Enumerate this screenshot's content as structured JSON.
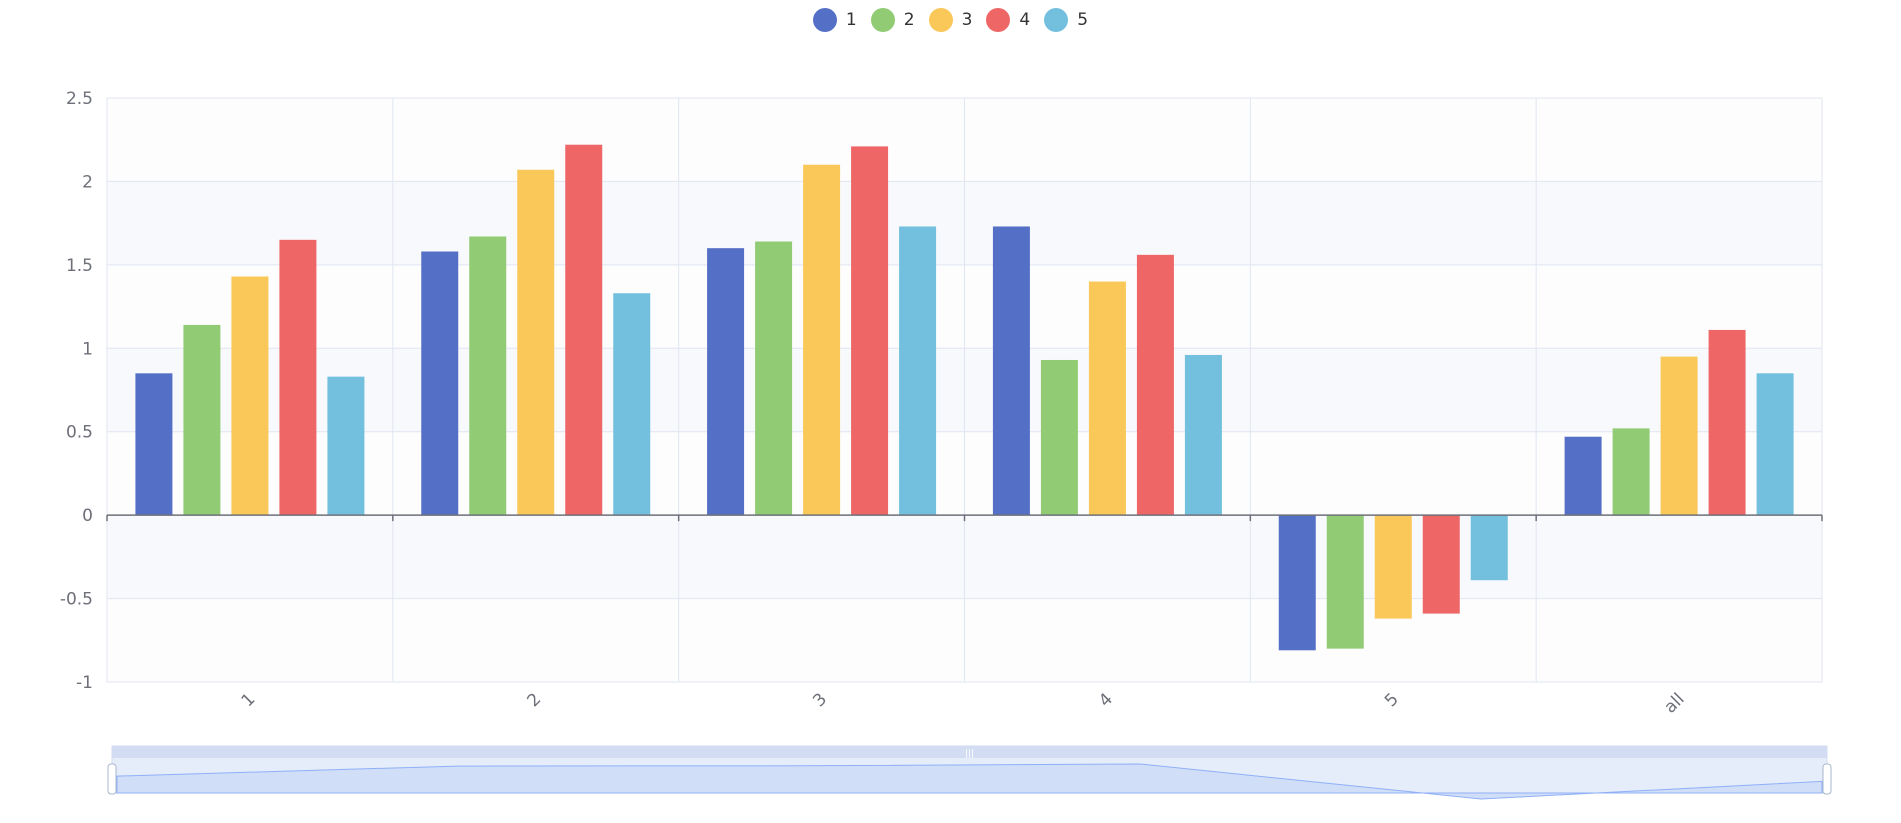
{
  "legend": [
    {
      "name": "1",
      "color": "#5470c6"
    },
    {
      "name": "2",
      "color": "#91cc75"
    },
    {
      "name": "3",
      "color": "#fac858"
    },
    {
      "name": "4",
      "color": "#ee6666"
    },
    {
      "name": "5",
      "color": "#73c0de"
    }
  ],
  "chart_data": {
    "type": "bar",
    "categories": [
      "1",
      "2",
      "3",
      "4",
      "5",
      "all"
    ],
    "ylim": [
      -1,
      2.5
    ],
    "yticks": [
      "-1",
      "-0.5",
      "0",
      "0.5",
      "1",
      "1.5",
      "2",
      "2.5"
    ],
    "grid": true,
    "legend_position": "top-center",
    "series": [
      {
        "name": "1",
        "color": "#5470c6",
        "values": [
          0.85,
          1.58,
          1.6,
          1.73,
          -0.81,
          0.47
        ]
      },
      {
        "name": "2",
        "color": "#91cc75",
        "values": [
          1.14,
          1.67,
          1.64,
          0.93,
          -0.8,
          0.52
        ]
      },
      {
        "name": "3",
        "color": "#fac858",
        "values": [
          1.43,
          2.07,
          2.1,
          1.4,
          -0.62,
          0.95
        ]
      },
      {
        "name": "4",
        "color": "#ee6666",
        "values": [
          1.65,
          2.22,
          2.21,
          1.56,
          -0.59,
          1.11
        ]
      },
      {
        "name": "5",
        "color": "#73c0de",
        "values": [
          0.83,
          1.33,
          1.73,
          0.96,
          -0.39,
          0.85
        ]
      }
    ]
  },
  "data_zoom": {
    "range_start_fraction": 0,
    "range_end_fraction": 1
  }
}
